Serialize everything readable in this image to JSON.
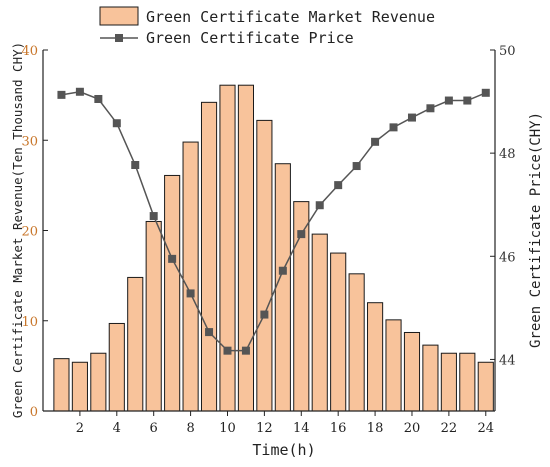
{
  "chart_data": {
    "type": "bar+line",
    "x": [
      1,
      2,
      3,
      4,
      5,
      6,
      7,
      8,
      9,
      10,
      11,
      12,
      13,
      14,
      15,
      16,
      17,
      18,
      19,
      20,
      21,
      22,
      23,
      24
    ],
    "series": [
      {
        "name": "Green Certificate Market Revenue",
        "type": "bar",
        "axis": "left",
        "values": [
          5.8,
          5.4,
          6.4,
          9.7,
          14.8,
          21.0,
          26.1,
          29.8,
          34.2,
          36.1,
          36.1,
          32.2,
          27.4,
          23.2,
          19.6,
          17.5,
          15.2,
          12.0,
          10.1,
          8.7,
          7.3,
          6.4,
          6.4,
          5.4
        ]
      },
      {
        "name": "Green Certificate Price",
        "type": "line",
        "axis": "right",
        "values": [
          49.13,
          49.19,
          49.05,
          48.58,
          47.77,
          46.78,
          45.95,
          45.28,
          44.53,
          44.17,
          44.17,
          44.87,
          45.72,
          46.43,
          46.99,
          47.38,
          47.75,
          48.22,
          48.5,
          48.69,
          48.87,
          49.02,
          49.02,
          49.17
        ]
      }
    ],
    "xlabel": "Time(h)",
    "ylabel_left": "Green Certificate Market Revenue(Ten Thousand CHY)",
    "ylabel_right": "Green Certificate Price(CHY)",
    "ylim_left": [
      0,
      40
    ],
    "ylim_right": [
      43,
      50
    ],
    "xlim": [
      0,
      24.5
    ],
    "x_ticks": [
      2,
      4,
      6,
      8,
      10,
      12,
      14,
      16,
      18,
      20,
      22,
      24
    ],
    "left_ticks": [
      0,
      10,
      20,
      30,
      40
    ],
    "right_ticks": [
      44,
      46,
      48,
      50
    ],
    "legend_position": "top-left",
    "grid": false,
    "colors": {
      "bar_fill": "#f8c39b",
      "bar_edge": "#1a1a1a",
      "line": "#555555",
      "marker": "#555555",
      "left_axis_text": "#c8762a",
      "right_axis_text": "#333333"
    }
  }
}
